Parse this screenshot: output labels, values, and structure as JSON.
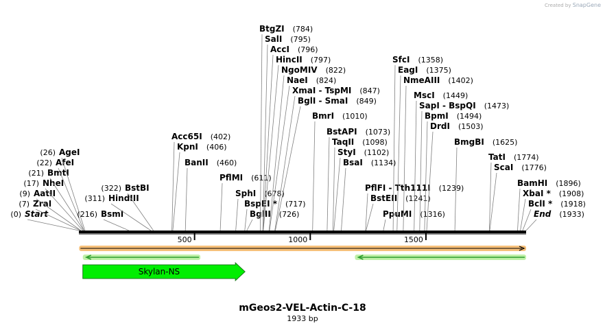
{
  "credit": {
    "prefix": "Created by",
    "brand": "SnapGene"
  },
  "plasmid": {
    "name": "mGeos2-VEL-Actin-C-18",
    "length_label": "1933 bp",
    "length": 1933
  },
  "ruler": {
    "ticks": [
      {
        "value": 500,
        "label": "500"
      },
      {
        "value": 1000,
        "label": "1000"
      },
      {
        "value": 1500,
        "label": "1500"
      }
    ]
  },
  "features": [
    {
      "name": "",
      "type": "orange-bar",
      "start": 1,
      "end": 1933,
      "direction": "forward",
      "color": "#f6c07a"
    },
    {
      "name": "",
      "type": "arrow",
      "start": 17,
      "end": 525,
      "direction": "reverse",
      "color": "#2e9e2e"
    },
    {
      "name": "",
      "type": "arrow",
      "start": 1193,
      "end": 1933,
      "direction": "reverse",
      "color": "#2e9e2e"
    },
    {
      "name": "Skylan-NS",
      "type": "cds",
      "start": 17,
      "end": 718,
      "direction": "forward",
      "color": "#00ee00"
    }
  ],
  "sites": [
    {
      "id": "start",
      "name": "Start",
      "pos_label": "(0)",
      "position": 0,
      "italic": true
    },
    {
      "id": "zrai",
      "name": "ZraI",
      "pos_label": "(7)",
      "position": 7
    },
    {
      "id": "aatii",
      "name": "AatII",
      "pos_label": "(9)",
      "position": 9
    },
    {
      "id": "nhei",
      "name": "NheI",
      "pos_label": "(17)",
      "position": 17
    },
    {
      "id": "bmti",
      "name": "BmtI",
      "pos_label": "(21)",
      "position": 21
    },
    {
      "id": "afei",
      "name": "AfeI",
      "pos_label": "(22)",
      "position": 22
    },
    {
      "id": "agei",
      "name": "AgeI",
      "pos_label": "(26)",
      "position": 26
    },
    {
      "id": "bsmi",
      "name": "BsmI",
      "pos_label": "(216)",
      "position": 216
    },
    {
      "id": "hindiii",
      "name": "HindIII",
      "pos_label": "(311)",
      "position": 311
    },
    {
      "id": "bstbi",
      "name": "BstBI",
      "pos_label": "(322)",
      "position": 322
    },
    {
      "id": "acc65i",
      "name": "Acc65I",
      "pos_label": "(402)",
      "position": 402
    },
    {
      "id": "kpni",
      "name": "KpnI",
      "pos_label": "(406)",
      "position": 406
    },
    {
      "id": "banii",
      "name": "BanII",
      "pos_label": "(460)",
      "position": 460
    },
    {
      "id": "pflmi",
      "name": "PflMI",
      "pos_label": "(611)",
      "position": 611
    },
    {
      "id": "sphi",
      "name": "SphI",
      "pos_label": "(678)",
      "position": 678
    },
    {
      "id": "bspei",
      "name": "BspEI *",
      "pos_label": "(717)",
      "position": 717
    },
    {
      "id": "bglii",
      "name": "BglII",
      "pos_label": "(726)",
      "position": 726
    },
    {
      "id": "btgzi",
      "name": "BtgZI",
      "pos_label": "(784)",
      "position": 784
    },
    {
      "id": "sali",
      "name": "SalI",
      "pos_label": "(795)",
      "position": 795
    },
    {
      "id": "acci",
      "name": "AccI",
      "pos_label": "(796)",
      "position": 796
    },
    {
      "id": "hincii",
      "name": "HincII",
      "pos_label": "(797)",
      "position": 797
    },
    {
      "id": "ngomiv",
      "name": "NgoMIV",
      "pos_label": "(822)",
      "position": 822
    },
    {
      "id": "naei",
      "name": "NaeI",
      "pos_label": "(824)",
      "position": 824
    },
    {
      "id": "xmai",
      "name": "XmaI  - TspMI",
      "pos_label": "(847)",
      "position": 847
    },
    {
      "id": "bgli",
      "name": "BglI  - SmaI",
      "pos_label": "(849)",
      "position": 849
    },
    {
      "id": "bmri",
      "name": "BmrI",
      "pos_label": "(1010)",
      "position": 1010
    },
    {
      "id": "bstapi",
      "name": "BstAPI",
      "pos_label": "(1073)",
      "position": 1073
    },
    {
      "id": "taqii",
      "name": "TaqII",
      "pos_label": "(1098)",
      "position": 1098
    },
    {
      "id": "styi",
      "name": "StyI",
      "pos_label": "(1102)",
      "position": 1102
    },
    {
      "id": "bsai",
      "name": "BsaI",
      "pos_label": "(1134)",
      "position": 1134
    },
    {
      "id": "pflfi",
      "name": "PflFI  - Tth111I",
      "pos_label": "(1239)",
      "position": 1239
    },
    {
      "id": "bsteii",
      "name": "BstEII",
      "pos_label": "(1241)",
      "position": 1241
    },
    {
      "id": "ppumi",
      "name": "PpuMI",
      "pos_label": "(1316)",
      "position": 1316
    },
    {
      "id": "sfci",
      "name": "SfcI",
      "pos_label": "(1358)",
      "position": 1358
    },
    {
      "id": "eagi",
      "name": "EagI",
      "pos_label": "(1375)",
      "position": 1375
    },
    {
      "id": "nmeaiii",
      "name": "NmeAIII",
      "pos_label": "(1402)",
      "position": 1402
    },
    {
      "id": "msci",
      "name": "MscI",
      "pos_label": "(1449)",
      "position": 1449
    },
    {
      "id": "sapi",
      "name": "SapI  - BspQI",
      "pos_label": "(1473)",
      "position": 1473
    },
    {
      "id": "bpmi",
      "name": "BpmI",
      "pos_label": "(1494)",
      "position": 1494
    },
    {
      "id": "drdi",
      "name": "DrdI",
      "pos_label": "(1503)",
      "position": 1503
    },
    {
      "id": "bmgbi",
      "name": "BmgBI",
      "pos_label": "(1625)",
      "position": 1625
    },
    {
      "id": "tati",
      "name": "TatI",
      "pos_label": "(1774)",
      "position": 1774
    },
    {
      "id": "scai",
      "name": "ScaI",
      "pos_label": "(1776)",
      "position": 1776
    },
    {
      "id": "bamhi",
      "name": "BamHI",
      "pos_label": "(1896)",
      "position": 1896
    },
    {
      "id": "xbai",
      "name": "XbaI *",
      "pos_label": "(1908)",
      "position": 1908
    },
    {
      "id": "bcli",
      "name": "BclI *",
      "pos_label": "(1918)",
      "position": 1918
    },
    {
      "id": "end",
      "name": "End",
      "pos_label": "(1933)",
      "position": 1933,
      "italic": true
    }
  ]
}
